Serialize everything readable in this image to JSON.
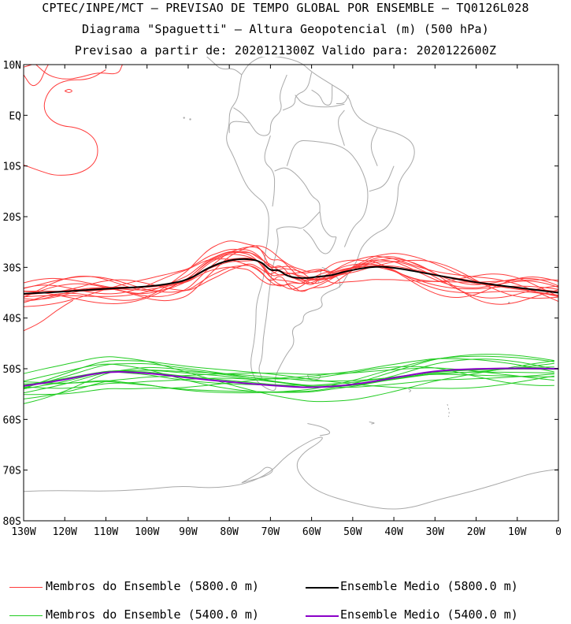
{
  "header": {
    "line1": "CPTEC/INPE/MCT – PREVISAO DE TEMPO GLOBAL POR ENSEMBLE – TQ0126L028",
    "line2": "Diagrama \"Spaguetti\" – Altura Geopotencial (m) (500 hPa)",
    "line3": "Previsao a partir de: 2020121300Z  Valido para: 2020122600Z"
  },
  "axes": {
    "lat_labels": [
      "10N",
      "EQ",
      "10S",
      "20S",
      "30S",
      "40S",
      "50S",
      "60S",
      "70S",
      "80S"
    ],
    "lon_labels": [
      "130W",
      "120W",
      "110W",
      "100W",
      "90W",
      "80W",
      "70W",
      "60W",
      "50W",
      "40W",
      "30W",
      "20W",
      "10W",
      "0"
    ]
  },
  "legend": {
    "red_members": "Membros do Ensemble (5800.0 m)",
    "black_mean": "Ensemble Medio (5800.0 m)",
    "green_members": "Membros do Ensemble (5400.0 m)",
    "purple_mean": "Ensemble Medio (5400.0 m)"
  },
  "colors": {
    "red_members": "#ff3b3b",
    "black_mean": "#000000",
    "green_members": "#22cc22",
    "purple_mean": "#8a00c8",
    "coastline": "#a9a9a9"
  },
  "map_data": {
    "lon_range": [
      -130,
      0
    ],
    "lat_range": [
      -80,
      10
    ],
    "mean_5800_lat": [
      [
        -130,
        -35.2
      ],
      [
        -120,
        -34.8
      ],
      [
        -110,
        -34.2
      ],
      [
        -100,
        -33.8
      ],
      [
        -95,
        -33.3
      ],
      [
        -90,
        -32.5
      ],
      [
        -85,
        -30
      ],
      [
        -80,
        -28.5
      ],
      [
        -75,
        -28.3
      ],
      [
        -72,
        -29
      ],
      [
        -70,
        -30.7
      ],
      [
        -68,
        -30.4
      ],
      [
        -66,
        -31.8
      ],
      [
        -62,
        -32.2
      ],
      [
        -58,
        -31.8
      ],
      [
        -55,
        -31.6
      ],
      [
        -52,
        -30.8
      ],
      [
        -45,
        -29.8
      ],
      [
        -40,
        -30
      ],
      [
        -30,
        -31.5
      ],
      [
        -20,
        -33
      ],
      [
        -10,
        -34
      ],
      [
        0,
        -35
      ]
    ],
    "mean_5400_lat": [
      [
        -130,
        -53.4
      ],
      [
        -120,
        -52.2
      ],
      [
        -110,
        -50.5
      ],
      [
        -100,
        -50.8
      ],
      [
        -90,
        -51.8
      ],
      [
        -80,
        -52.6
      ],
      [
        -70,
        -53.3
      ],
      [
        -60,
        -53.8
      ],
      [
        -50,
        -53.2
      ],
      [
        -40,
        -51.8
      ],
      [
        -30,
        -50.4
      ],
      [
        -20,
        -50
      ],
      [
        -10,
        -49.9
      ],
      [
        0,
        -50
      ]
    ]
  }
}
